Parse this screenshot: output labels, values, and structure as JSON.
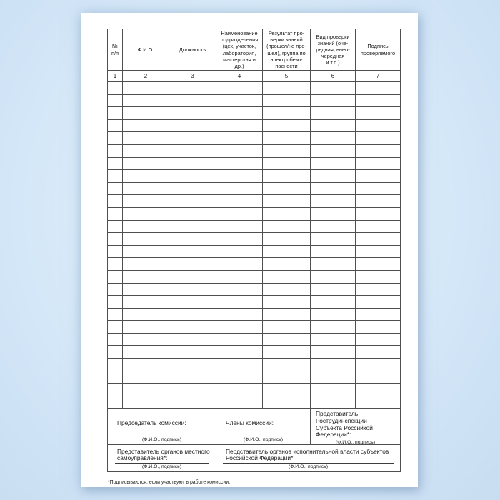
{
  "doc": {
    "columns": [
      {
        "num": "1",
        "header": "№\nп/п"
      },
      {
        "num": "2",
        "header": "Ф.И.О."
      },
      {
        "num": "3",
        "header": "Должность"
      },
      {
        "num": "4",
        "header": "Наименование\nподразделения\n(цех, участок,\nлаборатория,\nмастерская и\nдр.)"
      },
      {
        "num": "5",
        "header": "Результат про-\nверки знаний\n(прошел/не про-\nшел), группа по\nэлектробезо-\nпасности"
      },
      {
        "num": "6",
        "header": "Вид проверки\nзнаний (оче-\nредная, внео-\nчередная\nи т.п.)"
      },
      {
        "num": "7",
        "header": "Подпись\nпроверяемого"
      }
    ],
    "empty_row_count": 26,
    "signature_caption": "(Ф.И.О., подпись)",
    "signatures_row1": [
      {
        "label": "Председатель комиссии:"
      },
      {
        "label": "Члены комиссии:"
      },
      {
        "label": "Представитель Рострудинспекции\nСубъекта Российкой Федерации*:"
      }
    ],
    "signatures_row2": [
      {
        "label": "Представитель органов местного\nсамоуправления*:"
      },
      {
        "label": "Пердставитель органов исполнительной власти субъектов\nРоссийской Федерации*:"
      }
    ],
    "footnote": "*Подписываются, если участвуют в работе комиссии."
  },
  "colors": {
    "background_center": "#eaf4fd",
    "background_edge": "#c9ddf1",
    "sheet": "#ffffff",
    "table_border": "#4f4f4f",
    "text": "#1b1b1b"
  }
}
